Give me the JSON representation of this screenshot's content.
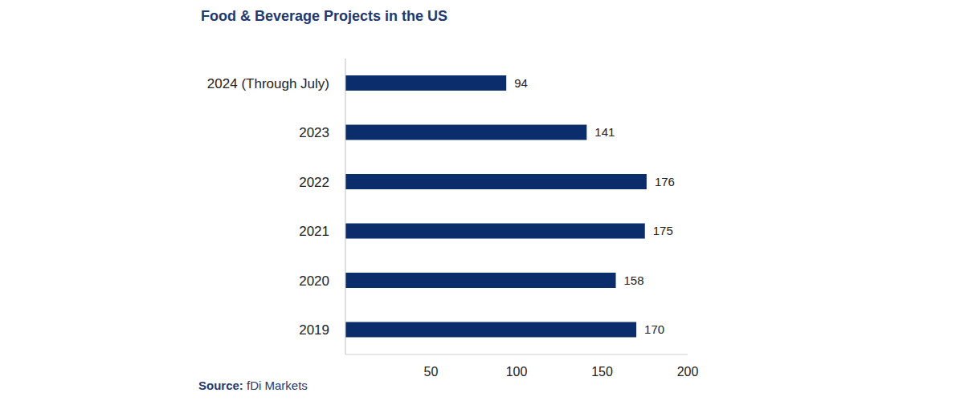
{
  "chart_data": {
    "type": "bar",
    "title": "Food & Beverage Projects in the US",
    "source_label": "Source:",
    "source": "fDi Markets",
    "orientation": "horizontal",
    "categories": [
      "2024 (Through July)",
      "2023",
      "2022",
      "2021",
      "2020",
      "2019"
    ],
    "values": [
      94,
      141,
      176,
      175,
      158,
      170
    ],
    "color": "#0b2d6b",
    "xlim": [
      0,
      200
    ],
    "xticks": [
      50,
      100,
      150,
      200
    ],
    "grid": false,
    "data_labels": true
  }
}
